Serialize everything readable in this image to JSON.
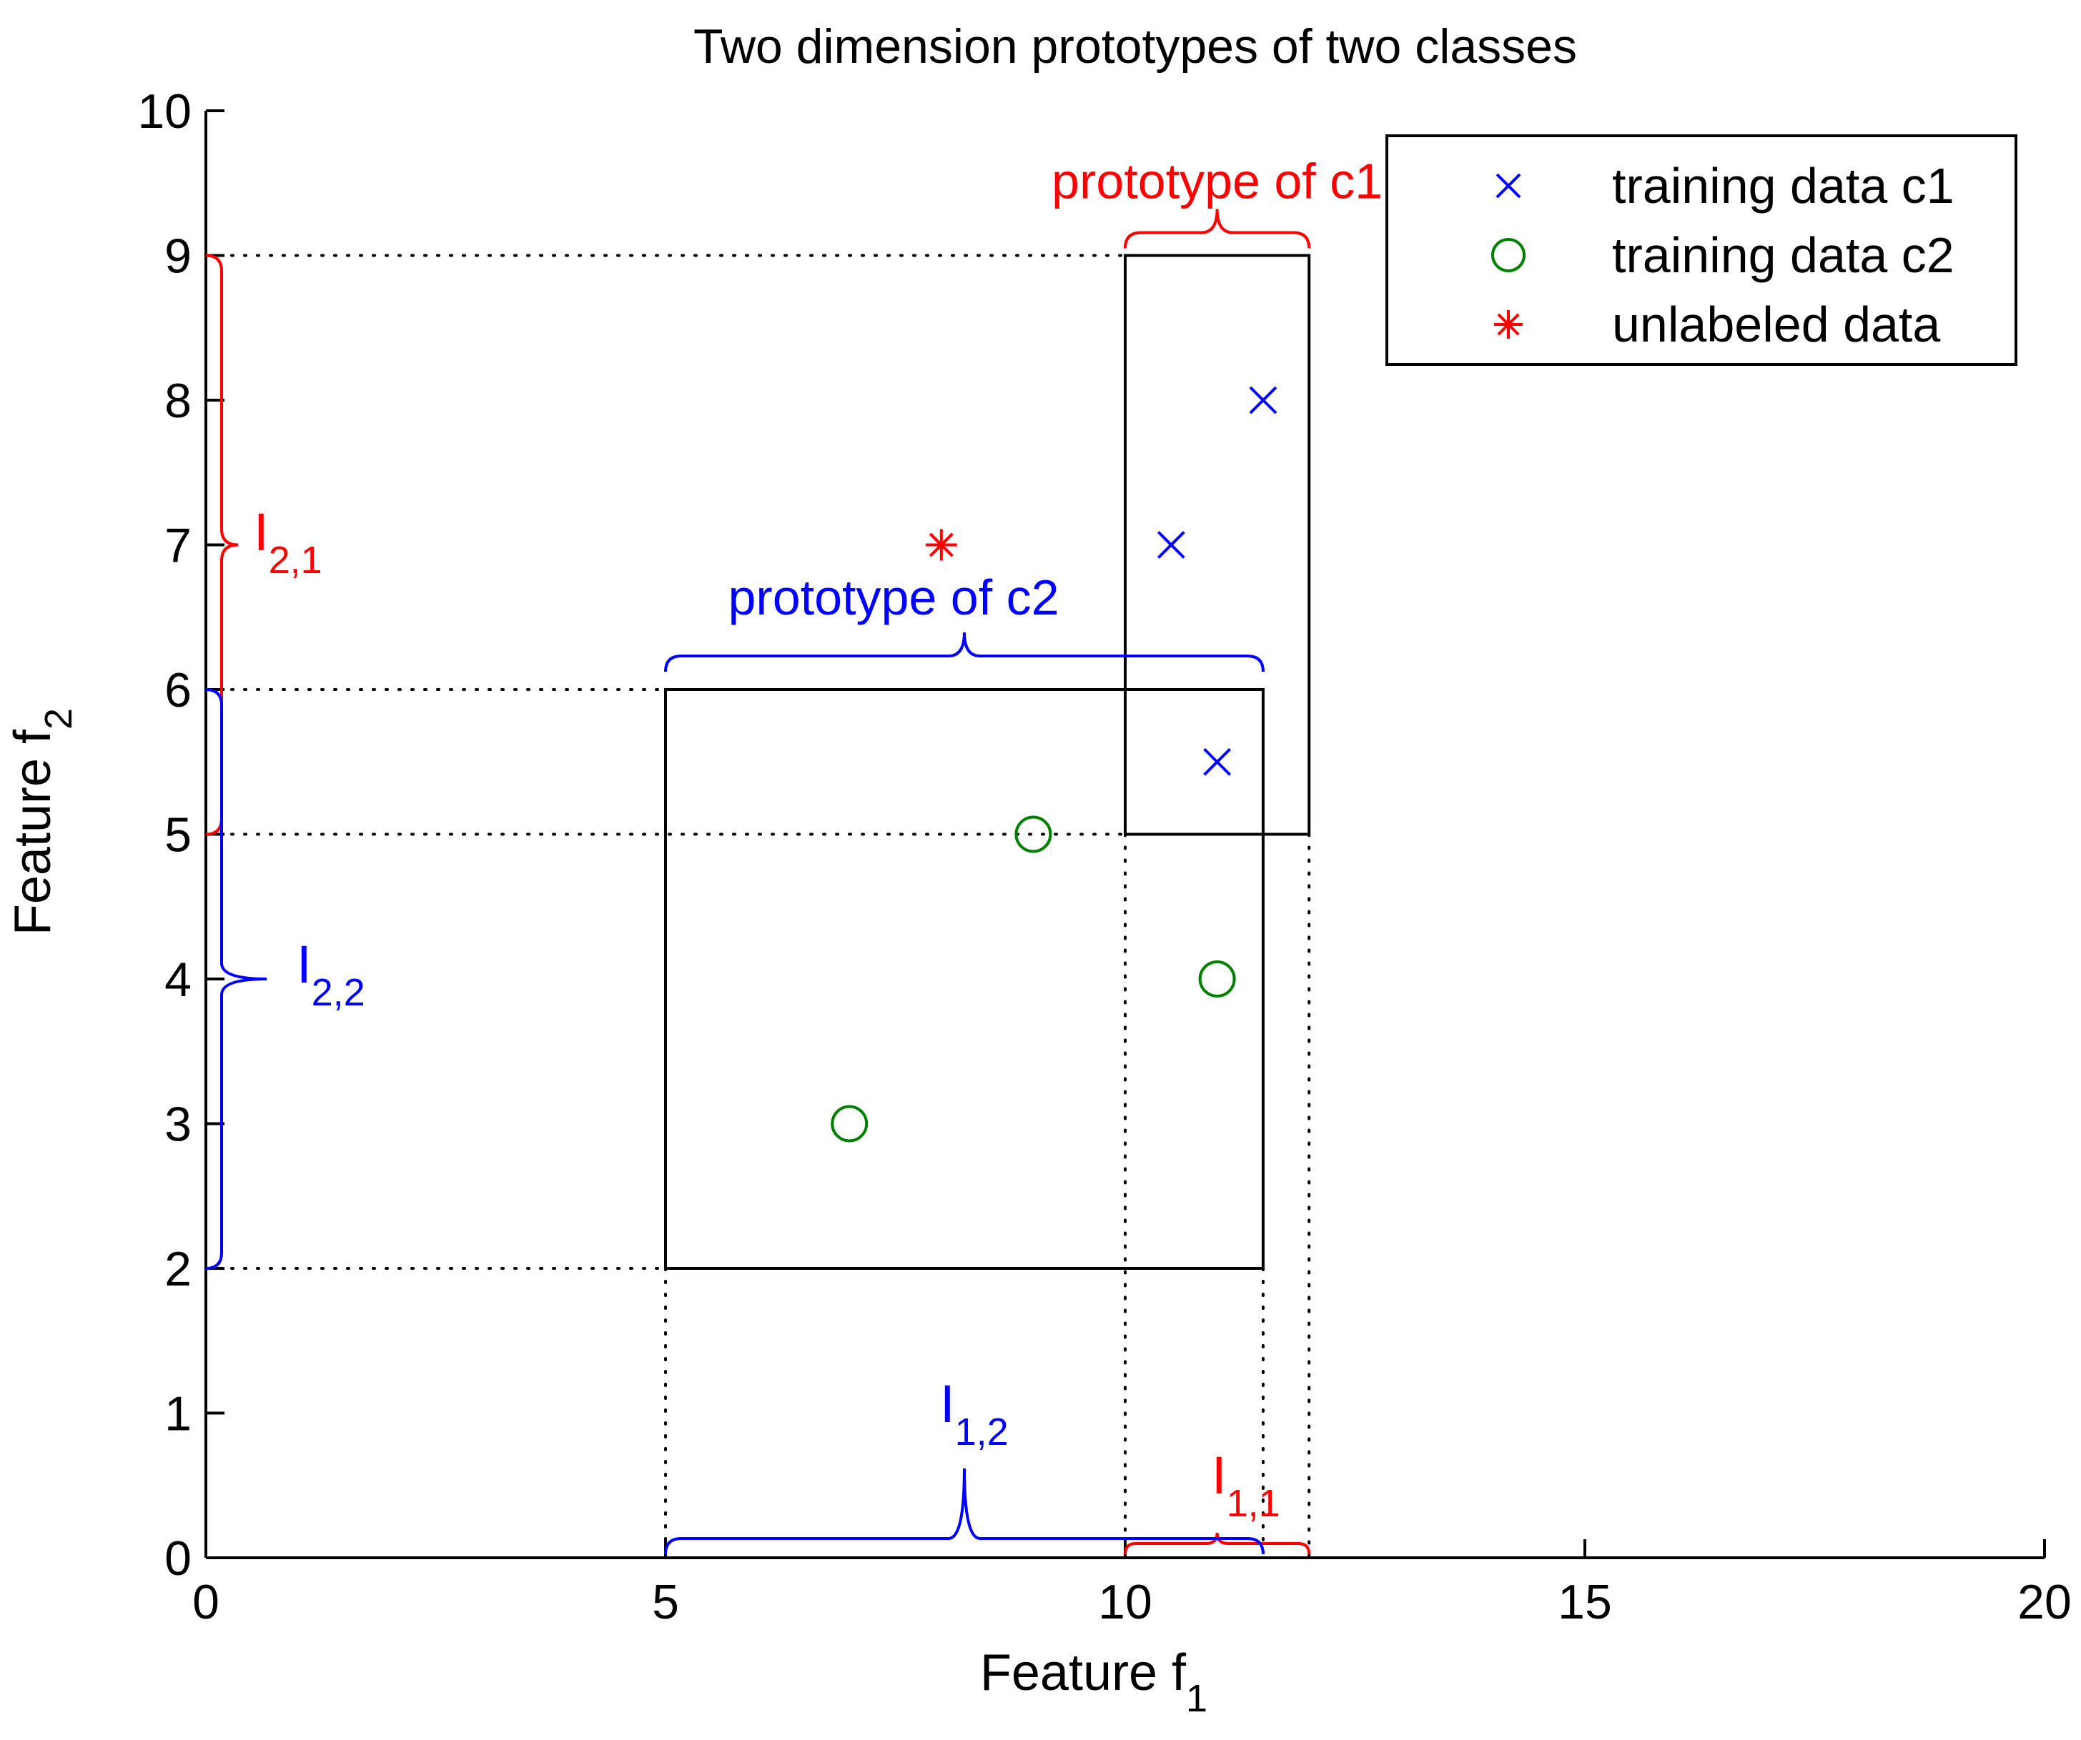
{
  "chart_data": {
    "type": "scatter",
    "title": "Two dimension prototypes of two classes",
    "xlabel": {
      "text": "Feature f",
      "sub": "1"
    },
    "ylabel": {
      "text": "Feature f",
      "sub": "2"
    },
    "xlim": [
      0,
      20
    ],
    "ylim": [
      0,
      10
    ],
    "xticks": [
      "0",
      "5",
      "10",
      "15",
      "20"
    ],
    "xtick_values": [
      0,
      5,
      10,
      15,
      20
    ],
    "yticks": [
      "0",
      "1",
      "2",
      "3",
      "4",
      "5",
      "6",
      "7",
      "8",
      "9",
      "10"
    ],
    "ytick_values": [
      0,
      1,
      2,
      3,
      4,
      5,
      6,
      7,
      8,
      9,
      10
    ],
    "grid": false,
    "legend_position": "top-right",
    "series": [
      {
        "name": "training data c1",
        "marker": "x",
        "color": "#0000ff",
        "points": [
          [
            10.5,
            7
          ],
          [
            11.5,
            8
          ],
          [
            11,
            5.5
          ]
        ]
      },
      {
        "name": "training data c2",
        "marker": "o",
        "color": "#008000",
        "points": [
          [
            7,
            3
          ],
          [
            9,
            5
          ],
          [
            11,
            4
          ]
        ]
      },
      {
        "name": "unlabeled data",
        "marker": "*",
        "color": "#ff0000",
        "points": [
          [
            8,
            7
          ]
        ]
      }
    ],
    "prototypes": [
      {
        "label": "prototype of c1",
        "color": "#ff0000",
        "x": [
          10,
          12
        ],
        "y": [
          5,
          9
        ]
      },
      {
        "label": "prototype of c2",
        "color": "#0000ff",
        "x": [
          5,
          11.5
        ],
        "y": [
          2,
          6
        ]
      }
    ],
    "intervals": [
      {
        "label": "I",
        "sub": "1,1",
        "axis": "x",
        "range": [
          10,
          12
        ],
        "color": "#ff0000"
      },
      {
        "label": "I",
        "sub": "1,2",
        "axis": "x",
        "range": [
          5,
          11.5
        ],
        "color": "#0000ff"
      },
      {
        "label": "I",
        "sub": "2,1",
        "axis": "y",
        "range": [
          5,
          9
        ],
        "color": "#ff0000"
      },
      {
        "label": "I",
        "sub": "2,2",
        "axis": "y",
        "range": [
          2,
          6
        ],
        "color": "#0000ff"
      }
    ]
  }
}
